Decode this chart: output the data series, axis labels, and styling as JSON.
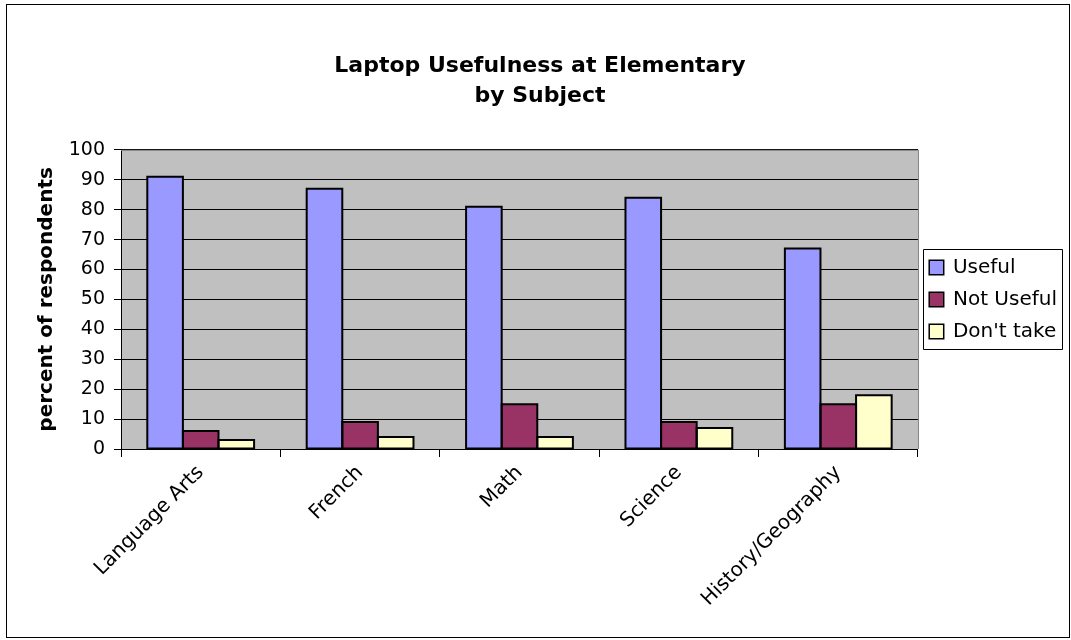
{
  "chart_data": {
    "type": "bar",
    "title": "Laptop Usefulness at Elementary\nby Subject",
    "ylabel": "percent of respondents",
    "categories": [
      "Language Arts",
      "French",
      "Math",
      "Science",
      "History/Geography"
    ],
    "series": [
      {
        "name": "Useful",
        "color": "#9999ff",
        "values": [
          91,
          87,
          81,
          84,
          67
        ]
      },
      {
        "name": "Not Useful",
        "color": "#993366",
        "values": [
          6,
          9,
          15,
          9,
          15
        ]
      },
      {
        "name": "Don't take",
        "color": "#ffffcc",
        "values": [
          3,
          4,
          4,
          7,
          18
        ]
      }
    ],
    "ylim": [
      0,
      100
    ],
    "yticks": [
      0,
      10,
      20,
      30,
      40,
      50,
      60,
      70,
      80,
      90,
      100
    ],
    "grid": "y",
    "legend": "right"
  }
}
